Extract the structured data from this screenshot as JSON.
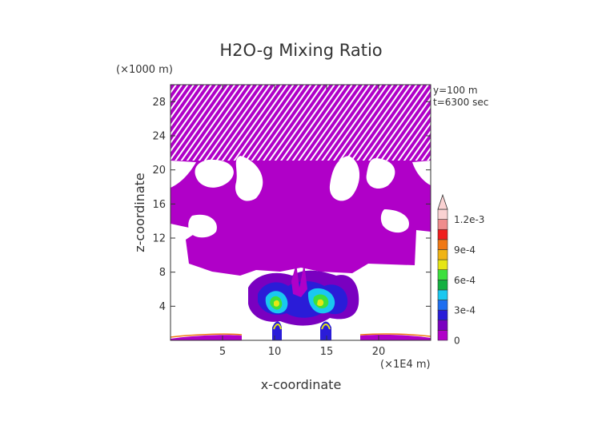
{
  "chart_data": {
    "type": "heatmap",
    "title": "H2O-g Mixing Ratio",
    "xlabel": "x-coordinate",
    "ylabel": "z-coordinate",
    "x_unit": "(×1E4 m)",
    "y_unit": "(×1000 m)",
    "annotations": [
      "y=100 m",
      "t=6300 sec"
    ],
    "xlim": [
      0,
      25
    ],
    "ylim": [
      0,
      30
    ],
    "x_ticks": [
      5,
      10,
      15,
      20
    ],
    "y_ticks": [
      4,
      8,
      12,
      16,
      20,
      24,
      28
    ],
    "colorbar": {
      "levels": [
        0,
        0.0001,
        0.0002,
        0.0003,
        0.0004,
        0.0005,
        0.0006,
        0.0007,
        0.0008,
        0.0009,
        0.001,
        0.0011,
        0.0012
      ],
      "tick_labels": [
        "0",
        "3e-4",
        "6e-4",
        "9e-4",
        "1.2e-3"
      ],
      "tick_values": [
        0,
        0.0003,
        0.0006,
        0.0009,
        0.0012
      ],
      "colors": [
        "#b000c8",
        "#7a00c0",
        "#2a1cd8",
        "#1e6ef0",
        "#19c8f0",
        "#12b040",
        "#3ce03c",
        "#e6e614",
        "#f0b414",
        "#f07814",
        "#f01e1e",
        "#f08c8c",
        "#fad2d2"
      ]
    }
  }
}
